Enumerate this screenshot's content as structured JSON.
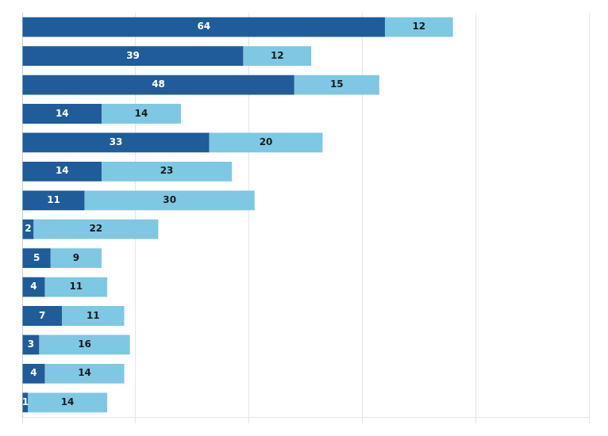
{
  "chart_data": {
    "type": "bar",
    "orientation": "horizontal",
    "stacked": true,
    "data_labels": true,
    "tick_labels": false,
    "grid": true,
    "categories": [
      null,
      null,
      null,
      null,
      null,
      null,
      null,
      null,
      null,
      null,
      null,
      null,
      null,
      null
    ],
    "series": [
      {
        "color": "#1F5C99",
        "values": [
          64,
          39,
          48,
          14,
          33,
          14,
          11,
          2,
          5,
          4,
          7,
          3,
          4,
          1
        ]
      },
      {
        "color": "#7EC8E3",
        "values": [
          12,
          12,
          15,
          14,
          20,
          23,
          30,
          22,
          9,
          11,
          11,
          16,
          14,
          14
        ]
      }
    ],
    "xlim": [
      0,
      100
    ],
    "xticks": [
      0,
      20,
      40,
      60,
      80,
      100
    ]
  }
}
